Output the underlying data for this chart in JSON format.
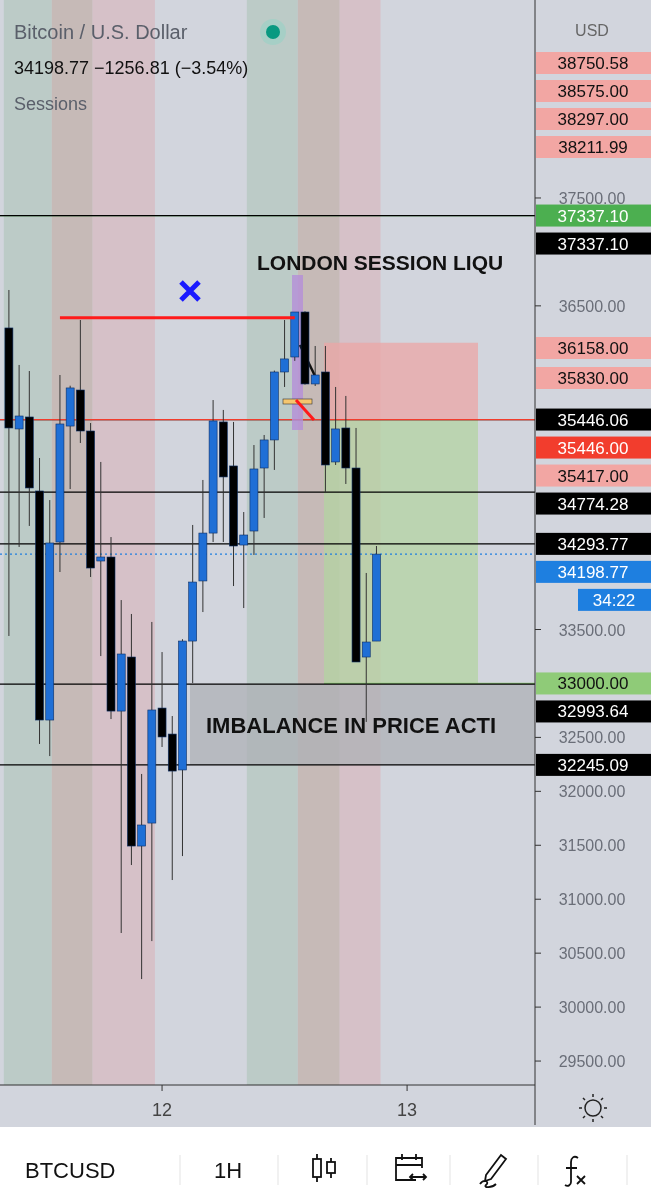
{
  "chart_data": {
    "type": "candlestick",
    "title": "Bitcoin / U.S. Dollar",
    "subtitle": "34198.77 −1256.81 (−3.54%)",
    "ylabel": "USD",
    "categories": [
      null,
      null,
      null,
      null,
      null,
      null,
      null,
      null,
      null,
      null,
      null,
      null,
      null,
      null,
      null,
      "12",
      null,
      null,
      null,
      null,
      null,
      null,
      null,
      null,
      null,
      null,
      null,
      null,
      null,
      null,
      null,
      null,
      null,
      null,
      null,
      null,
      null,
      null,
      null,
      "13",
      null,
      null,
      null,
      null,
      null,
      null,
      null,
      null,
      null,
      null,
      null,
      null
    ],
    "ylim": [
      29278,
      39335
    ],
    "yticks": [
      {
        "value": 29500,
        "label": "29500.00"
      },
      {
        "value": 30000,
        "label": "30000.00"
      },
      {
        "value": 30500,
        "label": "30500.00"
      },
      {
        "value": 31000,
        "label": "31000.00"
      },
      {
        "value": 31500,
        "label": "31500.00"
      },
      {
        "value": 32000,
        "label": "32000.00"
      },
      {
        "value": 32500,
        "label": "32500.00"
      },
      {
        "value": 33500,
        "label": "33500.00"
      },
      {
        "value": 36500,
        "label": "36500.00"
      },
      {
        "value": 37500,
        "label": "37500.00"
      }
    ],
    "series": [
      {
        "type": "candlestick",
        "ohlc": [
          [
            36295,
            36647,
            33440,
            35368
          ],
          [
            35359,
            35952,
            34265,
            35479
          ],
          [
            35470,
            35896,
            34460,
            34812
          ],
          [
            34784,
            35090,
            32439,
            32661
          ],
          [
            32661,
            34700,
            32327,
            34302
          ],
          [
            34311,
            35859,
            34033,
            35405
          ],
          [
            35386,
            35760,
            34802,
            35739
          ],
          [
            35720,
            36369,
            35229,
            35340
          ],
          [
            35340,
            35414,
            33987,
            34070
          ],
          [
            34135,
            35053,
            33254,
            34172
          ],
          [
            34172,
            34357,
            32670,
            32744
          ],
          [
            32744,
            33773,
            30687,
            33273
          ],
          [
            33245,
            33644,
            31317,
            31493
          ],
          [
            31493,
            32161,
            30260,
            31688
          ],
          [
            31706,
            33570,
            30612,
            32754
          ],
          [
            32772,
            33291,
            32411,
            32504
          ],
          [
            32531,
            32698,
            31178,
            32188
          ],
          [
            32198,
            33410,
            31400,
            33393
          ],
          [
            33393,
            34469,
            33004,
            33940
          ],
          [
            33950,
            34886,
            33662,
            34394
          ],
          [
            34394,
            35627,
            34311,
            35433
          ],
          [
            35424,
            35535,
            34311,
            34914
          ],
          [
            35016,
            35424,
            33903,
            34274
          ],
          [
            34283,
            34589,
            33699,
            34376
          ],
          [
            34413,
            35210,
            34191,
            34988
          ],
          [
            34997,
            35303,
            34534,
            35257
          ],
          [
            35257,
            35900,
            34979,
            35887
          ],
          [
            35887,
            36369,
            35748,
            36008
          ],
          [
            36026,
            36443,
            35990,
            36443
          ],
          [
            36443,
            36450,
            35770,
            35776
          ],
          [
            35776,
            36128,
            35757,
            35859
          ],
          [
            35887,
            36128,
            34765,
            35025
          ],
          [
            35053,
            35748,
            35025,
            35359
          ],
          [
            35368,
            35665,
            34849,
            34997
          ],
          [
            34997,
            35368,
            33199,
            33199
          ],
          [
            33245,
            34024,
            32643,
            33384
          ],
          [
            33393,
            34274,
            33393,
            34198.77
          ],
          null,
          null,
          null,
          null,
          null,
          null,
          null,
          null,
          null,
          null,
          null,
          null,
          null,
          null,
          null
        ],
        "colors": [
          "#000000",
          "#1f6fd6",
          "#000000",
          "#000000",
          "#1f6fd6",
          "#1f6fd6",
          "#1f6fd6",
          "#000000",
          "#000000",
          "#1f6fd6",
          "#000000",
          "#1f6fd6",
          "#000000",
          "#1f6fd6",
          "#1f6fd6",
          "#000000",
          "#000000",
          "#1f6fd6",
          "#1f6fd6",
          "#1f6fd6",
          "#1f6fd6",
          "#000000",
          "#000000",
          "#1f6fd6",
          "#1f6fd6",
          "#1f6fd6",
          "#1f6fd6",
          "#1f6fd6",
          "#1f6fd6",
          "#000000",
          "#1f6fd6",
          "#000000",
          "#1f6fd6",
          "#000000",
          "#000000",
          "#1f6fd6",
          "#1f6fd6",
          null,
          null,
          null,
          null,
          null,
          null,
          null,
          null,
          null,
          null,
          null,
          null,
          null,
          null,
          null
        ]
      },
      {
        "type": "line",
        "values": [
          null,
          null,
          null,
          null,
          null,
          36390,
          36390,
          36390,
          36390,
          36390,
          36390,
          36390,
          36390,
          36390,
          36390,
          36390,
          36390,
          36390,
          36390,
          36390,
          36390,
          36390,
          36390,
          36390,
          36390,
          36390,
          36390,
          36390,
          36390,
          null,
          null,
          null,
          null,
          null,
          null,
          null,
          null,
          null,
          null,
          null,
          null,
          null,
          null,
          null,
          null,
          null,
          null,
          null,
          null,
          null,
          null,
          null
        ],
        "color": "#ff1a1a"
      }
    ],
    "bands": [
      {
        "axis": "y",
        "from": 35446,
        "to": 36158,
        "color": "#eba5a5"
      },
      {
        "axis": "y",
        "from": 33000,
        "to": 35446,
        "color": "#b3d3a2"
      },
      {
        "axis": "y",
        "from": 32245.09,
        "to": 32993.64,
        "label": "IMBALANCE IN PRICE ACTI",
        "color": "#aeb0b6"
      }
    ],
    "ref_lines": [
      {
        "axis": "y",
        "value": 37337.1,
        "label": "37337.10",
        "color": "#4caf50"
      },
      {
        "axis": "y",
        "value": 37337.1,
        "label": "37337.10",
        "color": "#000000"
      },
      {
        "axis": "y",
        "value": 35446.06,
        "label": "35446.06",
        "color": "#000000"
      },
      {
        "axis": "y",
        "value": 35446.0,
        "label": "35446.00",
        "color": "#f23d2d"
      },
      {
        "axis": "y",
        "value": 34774.28,
        "label": "34774.28",
        "color": "#000000"
      },
      {
        "axis": "y",
        "value": 34293.77,
        "label": "34293.77",
        "color": "#000000"
      },
      {
        "axis": "y",
        "value": 34198.77,
        "label": "34198.77",
        "color": "#1e7fe0",
        "line_style": "dotted"
      },
      {
        "axis": "y",
        "value": 33000,
        "label": "33000.00",
        "color": "#8fcb78"
      },
      {
        "axis": "y",
        "value": 32993.64,
        "label": "32993.64",
        "color": "#000000"
      },
      {
        "axis": "y",
        "value": 32245.09,
        "label": "32245.09",
        "color": "#000000"
      }
    ],
    "annotations": [
      "Sessions",
      "BTCUSD",
      "1H",
      "LONDON SESSION LIQU",
      "34:22",
      "38750.58",
      "38575.00",
      "38297.00",
      "38211.99",
      "36158.00",
      "35830.00",
      "35417.00"
    ]
  }
}
